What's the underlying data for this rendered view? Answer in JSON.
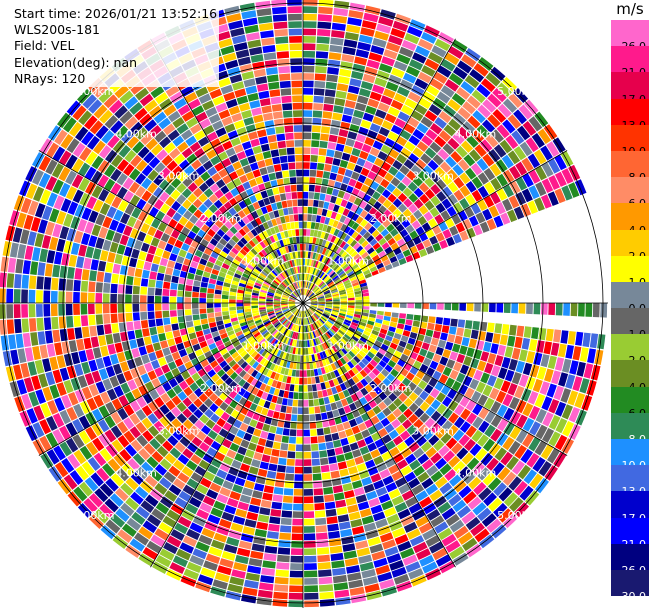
{
  "info": {
    "start_time": "Start time: 2026/01/21 13:52:16",
    "instrument": "WLS200s-181",
    "field": "Field: VEL",
    "elevation": "Elevation(deg): nan",
    "nrays": "NRays: 120"
  },
  "colorbar": {
    "unit": "m/s",
    "ticks": [
      "26.0",
      "21.0",
      "17.0",
      "13.0",
      "10.0",
      "8.0",
      "6.0",
      "4.0",
      "2.0",
      "1.0",
      "0.0",
      "-1.0",
      "-2.0",
      "-4.0",
      "-6.0",
      "-8.0",
      "-10.0",
      "-13.0",
      "-17.0",
      "-21.0",
      "-26.0",
      "-30.0"
    ],
    "colors": [
      "#ff66cc",
      "#ff1a8c",
      "#e6004c",
      "#ff0000",
      "#ff3300",
      "#ff6633",
      "#ff8c66",
      "#ff9900",
      "#ffcc00",
      "#ffff00",
      "#778899",
      "#666666",
      "#99cc33",
      "#6b8e23",
      "#228b22",
      "#2e8b57",
      "#1e90ff",
      "#4169e1",
      "#0000cd",
      "#0000ff",
      "#000080",
      "#191970"
    ]
  },
  "ring_labels": {
    "r1": "1.00km",
    "r2": "2.00km",
    "r3": "3.00km",
    "r4": "4.00km",
    "r5": "5.00km"
  }
}
